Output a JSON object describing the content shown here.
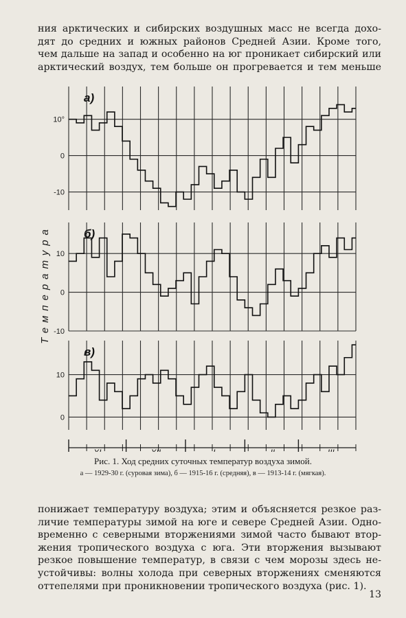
{
  "text_top": [
    "ния арктических и сибирских воздушных масс не всегда дохо-",
    "дят до средних и южных районов Средней Азии. Кроме того,",
    "чем дальше на запад и особенно на юг проникает сибирский или",
    "арктический воздух, тем больше он прогревается и тем меньше"
  ],
  "figure": {
    "ylabel": "Температура",
    "months": [
      "XI",
      "XII",
      "I",
      "II",
      "III"
    ],
    "caption_title": "Рис. 1. Ход средних суточных температур воздуха зимой.",
    "caption_legend": "а — 1929-30 г. (суровая зима), б — 1915-16 г. (средняя), в — 1913-14 г. (мягкая)."
  },
  "chart_data": [
    {
      "type": "line",
      "panel_label": "а)",
      "yticks": [
        "10°",
        "0",
        "-10"
      ],
      "ylim": [
        -15,
        19
      ],
      "x_unit": "day from start of November",
      "x": [
        0,
        4,
        8,
        12,
        16,
        20,
        24,
        28,
        32,
        36,
        40,
        44,
        48,
        52,
        56,
        60,
        64,
        68,
        72,
        76,
        80,
        84,
        88,
        92,
        96,
        100,
        104,
        108,
        112,
        116,
        120,
        124,
        128,
        132,
        136,
        140,
        144,
        148
      ],
      "values": [
        10,
        9,
        11,
        7,
        9,
        12,
        8,
        4,
        -1,
        -4,
        -7,
        -9,
        -13,
        -14,
        -10,
        -12,
        -8,
        -3,
        -5,
        -9,
        -7,
        -4,
        -10,
        -12,
        -6,
        -1,
        -6,
        2,
        5,
        -2,
        3,
        8,
        7,
        11,
        13,
        14,
        12,
        13
      ]
    },
    {
      "type": "line",
      "panel_label": "б)",
      "yticks": [
        "10",
        "0",
        "-10"
      ],
      "ylim": [
        -10,
        18
      ],
      "x_unit": "day from start of November",
      "x": [
        0,
        4,
        8,
        12,
        16,
        20,
        24,
        28,
        32,
        36,
        40,
        44,
        48,
        52,
        56,
        60,
        64,
        68,
        72,
        76,
        80,
        84,
        88,
        92,
        96,
        100,
        104,
        108,
        112,
        116,
        120,
        124,
        128,
        132,
        136,
        140,
        144,
        148
      ],
      "values": [
        8,
        10,
        14,
        9,
        14,
        4,
        8,
        15,
        14,
        10,
        5,
        2,
        -1,
        1,
        3,
        5,
        -3,
        4,
        8,
        11,
        10,
        4,
        -2,
        -4,
        -6,
        -3,
        2,
        6,
        3,
        -1,
        1,
        5,
        10,
        12,
        9,
        14,
        11,
        14
      ]
    },
    {
      "type": "line",
      "panel_label": "в)",
      "yticks": [
        "10",
        "0"
      ],
      "ylim": [
        -3,
        18
      ],
      "x_unit": "day from start of November",
      "x": [
        0,
        4,
        8,
        12,
        16,
        20,
        24,
        28,
        32,
        36,
        40,
        44,
        48,
        52,
        56,
        60,
        64,
        68,
        72,
        76,
        80,
        84,
        88,
        92,
        96,
        100,
        104,
        108,
        112,
        116,
        120,
        124,
        128,
        132,
        136,
        140,
        144,
        148
      ],
      "values": [
        5,
        9,
        13,
        11,
        4,
        8,
        6,
        2,
        5,
        9,
        10,
        8,
        11,
        9,
        5,
        3,
        7,
        10,
        12,
        7,
        5,
        2,
        6,
        10,
        4,
        1,
        0,
        3,
        5,
        2,
        4,
        8,
        10,
        6,
        12,
        10,
        14,
        17
      ]
    }
  ],
  "text_bottom": [
    "понижает температуру воздуха; этим и объясняется резкое раз-",
    "личие температуры зимой на юге и севере Средней Азии. Одно-",
    "временно с северными вторжениями зимой часто бывают втор-",
    "жения тропического воздуха с юга. Эти вторжения вызывают",
    "резкое повышение температур, в связи с чем морозы здесь не-",
    "устойчивы: волны холода при северных вторжениях сменяются",
    "оттепелями при проникновении тропического воздуха (рис. 1)."
  ],
  "page_number": "13"
}
